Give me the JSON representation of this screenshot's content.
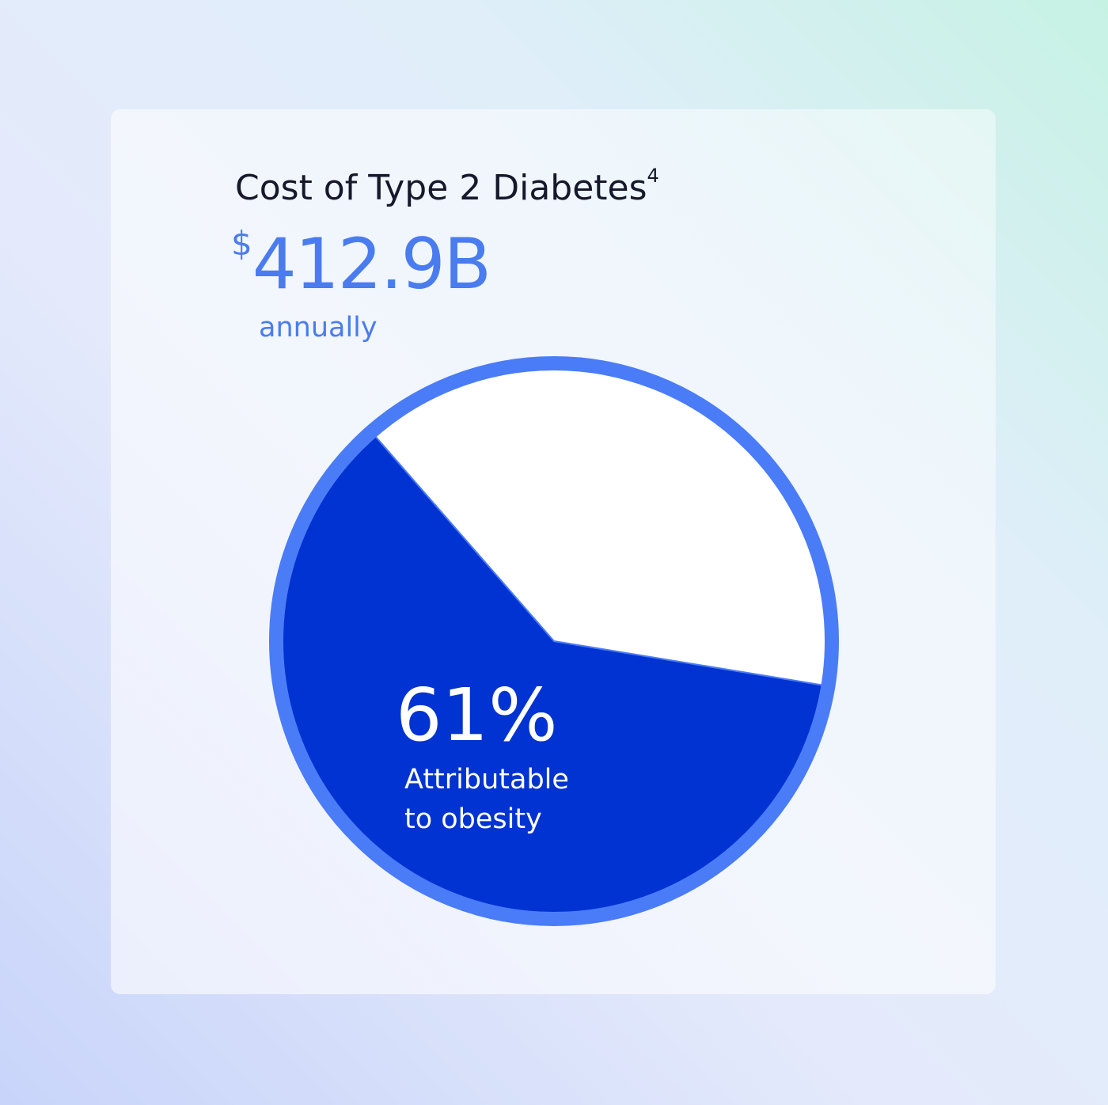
{
  "chart_data": {
    "type": "pie",
    "title": "Cost of Type 2 Diabetes",
    "title_superscript": "4",
    "total": {
      "currency": "$",
      "amount": "412.9B"
    },
    "total_note": "annually",
    "categories": [
      "Attributable to obesity",
      null
    ],
    "values": [
      61,
      39
    ],
    "value_labels": [
      "61%",
      null
    ],
    "colors": [
      "#0033d1",
      "#ffffff"
    ],
    "border_color": "#4a7cf8"
  }
}
